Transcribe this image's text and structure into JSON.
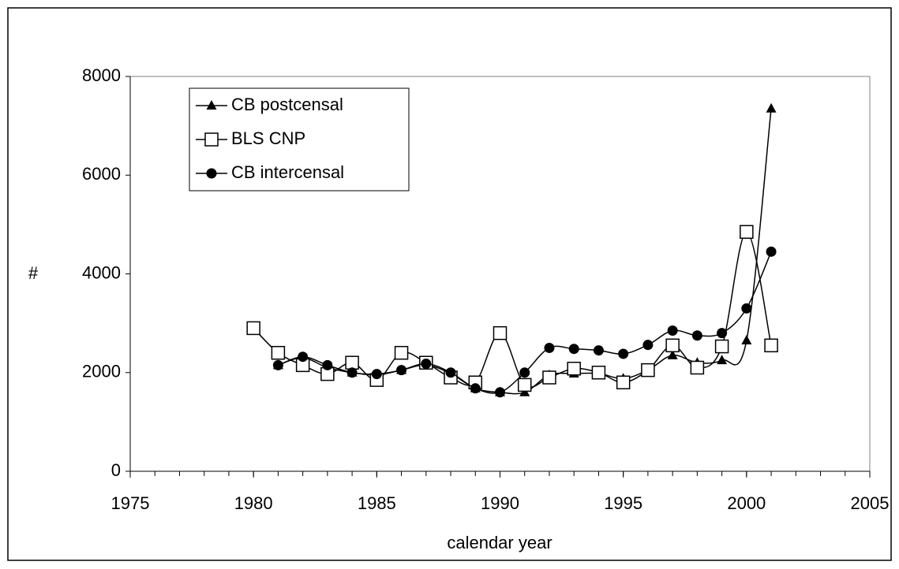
{
  "chart_data": {
    "type": "line",
    "x_label": "calendar year",
    "y_label": "#",
    "x": [
      1980,
      1981,
      1982,
      1983,
      1984,
      1985,
      1986,
      1987,
      1988,
      1989,
      1990,
      1991,
      1992,
      1993,
      1994,
      1995,
      1996,
      1997,
      1998,
      1999,
      2000,
      2001
    ],
    "series": [
      {
        "name": "CB postcensal",
        "color": "#000000",
        "marker": "triangle",
        "values": [
          null,
          2150,
          2300,
          2100,
          2000,
          1950,
          2050,
          2150,
          1980,
          1680,
          1600,
          1600,
          1950,
          1980,
          1980,
          1880,
          2050,
          2350,
          2200,
          2250,
          2650,
          7350
        ]
      },
      {
        "name": "BLS CNP",
        "color": "#000000",
        "marker": "square",
        "values": [
          2900,
          2400,
          2150,
          1970,
          2200,
          1850,
          2400,
          2200,
          1900,
          1800,
          2800,
          1750,
          1900,
          2080,
          2000,
          1800,
          2050,
          2550,
          2100,
          2530,
          4850,
          2550
        ]
      },
      {
        "name": "CB intercensal",
        "color": "#000000",
        "marker": "circle",
        "values": [
          null,
          2150,
          2320,
          2150,
          2000,
          1970,
          2050,
          2180,
          2000,
          1680,
          1600,
          2000,
          2500,
          2480,
          2450,
          2380,
          2560,
          2850,
          2750,
          2800,
          3300,
          4450
        ]
      }
    ],
    "xlim": [
      1975,
      2005
    ],
    "xticks": [
      1975,
      1980,
      1985,
      1990,
      1995,
      2000,
      2005
    ],
    "ylim": [
      0,
      8000
    ],
    "yticks": [
      0,
      2000,
      4000,
      6000,
      8000
    ],
    "grid": false,
    "smooth": true,
    "legend": "upper left"
  }
}
